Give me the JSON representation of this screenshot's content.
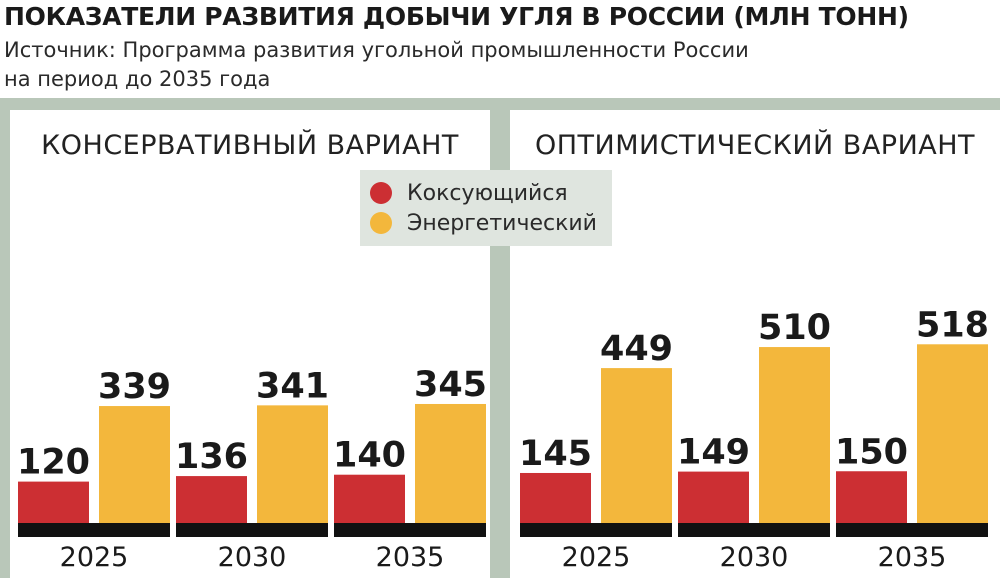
{
  "title": "ПОКАЗАТЕЛИ РАЗВИТИЯ ДОБЫЧИ УГЛЯ В РОССИИ (МЛН ТОНН)",
  "subtitle_line1": "Источник: Программа развития угольной промышленности России",
  "subtitle_line2": "на период до 2035 года",
  "colors": {
    "coking": "#cc2f33",
    "energy": "#f3b73c",
    "frame": "#b9c7b9",
    "legend_bg": "#dfe5df",
    "baseline": "#111111"
  },
  "legend": [
    {
      "label": "Коксующийся",
      "color": "#cc2f33"
    },
    {
      "label": "Энергетический",
      "color": "#f3b73c"
    }
  ],
  "chart_data": [
    {
      "type": "bar",
      "title": "КОНСЕРВАТИВНЫЙ ВАРИАНТ",
      "categories": [
        "2025",
        "2030",
        "2035"
      ],
      "series": [
        {
          "name": "Коксующийся",
          "values": [
            120,
            136,
            140
          ]
        },
        {
          "name": "Энергетический",
          "values": [
            339,
            341,
            345
          ]
        }
      ],
      "ylim": [
        0,
        560
      ]
    },
    {
      "type": "bar",
      "title": "ОПТИМИСТИЧЕСКИЙ ВАРИАНТ",
      "categories": [
        "2025",
        "2030",
        "2035"
      ],
      "series": [
        {
          "name": "Коксующийся",
          "values": [
            145,
            149,
            150
          ]
        },
        {
          "name": "Энергетический",
          "values": [
            449,
            510,
            518
          ]
        }
      ],
      "ylim": [
        0,
        560
      ]
    }
  ]
}
